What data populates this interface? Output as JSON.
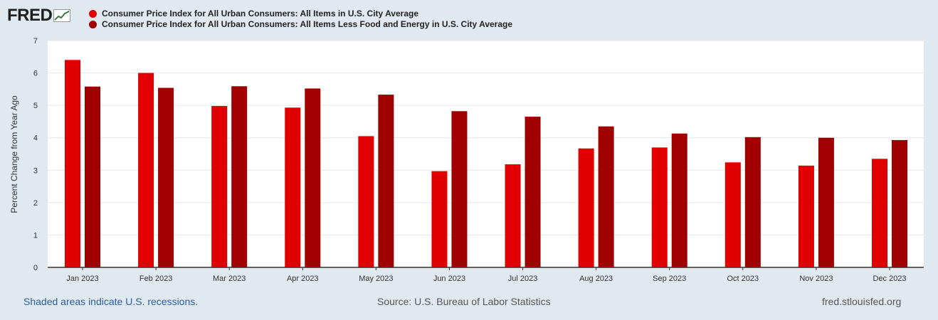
{
  "header": {
    "logo_text": "FRED",
    "logo_icon": "chart-line-icon"
  },
  "legend": [
    {
      "label": "Consumer Price Index for All Urban Consumers: All Items in U.S. City Average",
      "color": "#e00000"
    },
    {
      "label": "Consumer Price Index for All Urban Consumers: All Items Less Food and Energy in U.S. City Average",
      "color": "#a00000"
    }
  ],
  "chart_data": {
    "type": "bar",
    "title": "",
    "xlabel": "",
    "ylabel": "Percent Change from Year Ago",
    "ylim": [
      0,
      7
    ],
    "yticks": [
      0,
      1,
      2,
      3,
      4,
      5,
      6,
      7
    ],
    "grid": true,
    "legend_position": "top-left",
    "categories": [
      "Jan 2023",
      "Feb 2023",
      "Mar 2023",
      "Apr 2023",
      "May 2023",
      "Jun 2023",
      "Jul 2023",
      "Aug 2023",
      "Sep 2023",
      "Oct 2023",
      "Nov 2023",
      "Dec 2023"
    ],
    "series": [
      {
        "name": "Consumer Price Index for All Urban Consumers: All Items in U.S. City Average",
        "color": "#e00000",
        "values": [
          6.4,
          6.0,
          4.98,
          4.93,
          4.05,
          2.97,
          3.18,
          3.67,
          3.7,
          3.24,
          3.14,
          3.35
        ]
      },
      {
        "name": "Consumer Price Index for All Urban Consumers: All Items Less Food and Energy in U.S. City Average",
        "color": "#a00000",
        "values": [
          5.58,
          5.54,
          5.59,
          5.52,
          5.33,
          4.82,
          4.65,
          4.35,
          4.13,
          4.02,
          4.0,
          3.93
        ]
      }
    ]
  },
  "footer": {
    "recession_note": "Shaded areas indicate U.S. recessions.",
    "source": "Source: U.S. Bureau of Labor Statistics",
    "site": "fred.stlouisfed.org"
  }
}
